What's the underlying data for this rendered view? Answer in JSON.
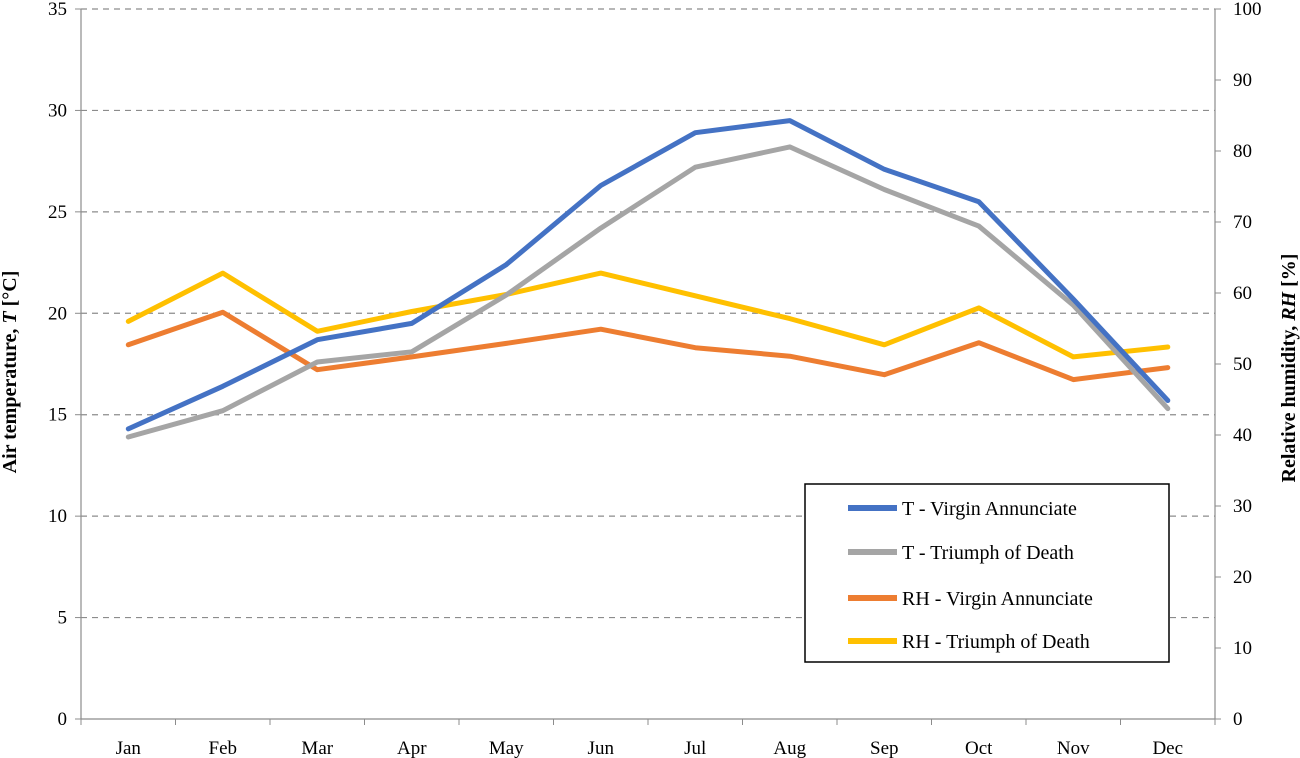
{
  "chart_data": {
    "type": "line",
    "categories": [
      "Jan",
      "Feb",
      "Mar",
      "Apr",
      "May",
      "Jun",
      "Jul",
      "Aug",
      "Sep",
      "Oct",
      "Nov",
      "Dec"
    ],
    "y_left": {
      "label_prefix": "Air temperature, ",
      "label_var": "T",
      "label_suffix": " [°C]",
      "range": [
        0,
        35
      ],
      "ticks": [
        "0",
        "5",
        "10",
        "15",
        "20",
        "25",
        "30",
        "35"
      ]
    },
    "y_right": {
      "label_prefix": "Relative humidity, ",
      "label_var": "RH",
      "label_suffix": " [%]",
      "range": [
        0,
        100
      ],
      "ticks": [
        "0",
        "10",
        "20",
        "30",
        "40",
        "50",
        "60",
        "70",
        "80",
        "90",
        "100"
      ]
    },
    "grid": "horizontal dashed",
    "legend_position": "lower-right",
    "series": [
      {
        "name": "T - Virgin Annunciate",
        "axis": "left",
        "color": "#4472C4",
        "values": [
          14.3,
          16.4,
          18.7,
          19.5,
          22.4,
          26.3,
          28.9,
          29.5,
          27.1,
          25.5,
          20.7,
          15.7
        ]
      },
      {
        "name": "T - Triumph of Death",
        "axis": "left",
        "color": "#A5A5A5",
        "values": [
          13.9,
          15.2,
          17.6,
          18.1,
          20.9,
          24.2,
          27.2,
          28.2,
          26.1,
          24.3,
          20.4,
          15.3
        ]
      },
      {
        "name": "RH - Virgin Annunciate",
        "axis": "right",
        "color": "#ED7D31",
        "values": [
          52.7,
          57.3,
          49.2,
          51.0,
          52.9,
          54.9,
          52.3,
          51.1,
          48.5,
          53.0,
          47.8,
          49.5
        ]
      },
      {
        "name": "RH - Triumph of Death",
        "axis": "right",
        "color": "#FFC000",
        "values": [
          56.0,
          62.8,
          54.6,
          57.4,
          59.8,
          62.8,
          59.6,
          56.4,
          52.7,
          57.9,
          51.0,
          52.4
        ]
      }
    ]
  }
}
